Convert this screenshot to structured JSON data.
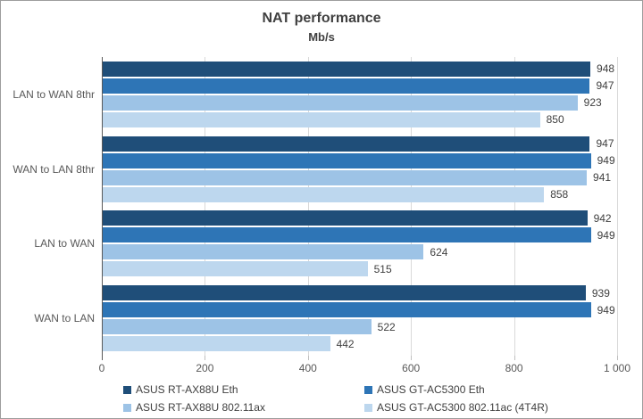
{
  "chart_data": {
    "type": "bar",
    "orientation": "horizontal",
    "title": "NAT performance",
    "subtitle": "Mb/s",
    "categories": [
      "LAN to WAN 8thr",
      "WAN to LAN 8thr",
      "LAN to WAN",
      "WAN to LAN"
    ],
    "series": [
      {
        "name": "ASUS RT-AX88U Eth",
        "color": "#1F4E79",
        "values": [
          948,
          947,
          942,
          939
        ]
      },
      {
        "name": "ASUS GT-AC5300 Eth",
        "color": "#2E75B6",
        "values": [
          947,
          949,
          949,
          949
        ]
      },
      {
        "name": "ASUS RT-AX88U 802.11ax",
        "color": "#9DC3E6",
        "values": [
          923,
          941,
          624,
          522
        ]
      },
      {
        "name": "ASUS GT-AC5300 802.11ac (4T4R)",
        "color": "#BDD7EE",
        "values": [
          850,
          858,
          515,
          442
        ]
      }
    ],
    "xlim": [
      0,
      1000
    ],
    "x_ticks": [
      0,
      200,
      400,
      600,
      800,
      1000
    ],
    "x_tick_labels": [
      "0",
      "200",
      "400",
      "600",
      "800",
      "1 000"
    ],
    "grid": true,
    "data_labels": true,
    "legend_position": "bottom",
    "colors": {
      "gridline": "#D9D9D9",
      "axis_line": "#595959",
      "title_text": "#404040",
      "axis_text": "#595959",
      "value_text": "#404040"
    }
  }
}
